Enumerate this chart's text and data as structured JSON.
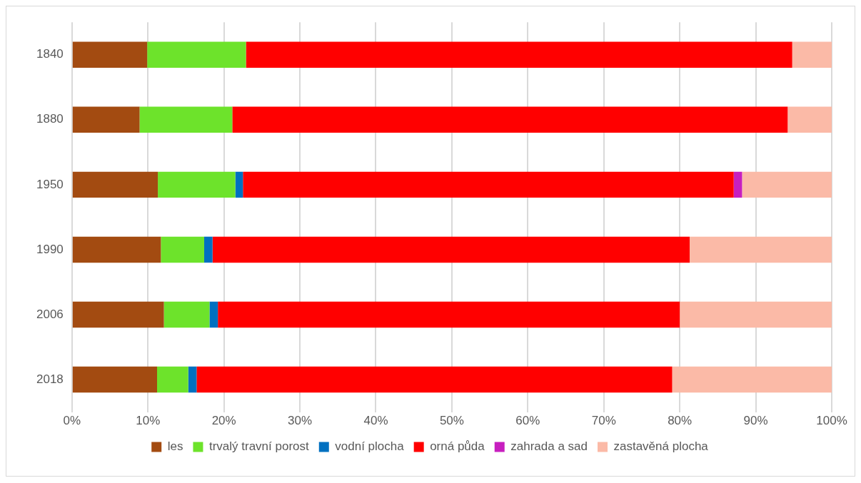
{
  "chart_data": {
    "type": "bar",
    "orientation": "horizontal",
    "stacked": true,
    "categories": [
      "1840",
      "1880",
      "1950",
      "1990",
      "2006",
      "2018"
    ],
    "series": [
      {
        "name": "les",
        "color": "#a34b11",
        "values": [
          9.9,
          8.9,
          11.3,
          11.7,
          12.1,
          11.2
        ]
      },
      {
        "name": "trvalý travní porost",
        "color": "#6de32b",
        "values": [
          13.0,
          12.2,
          10.2,
          5.7,
          6.0,
          4.1
        ]
      },
      {
        "name": "vodní plocha",
        "color": "#0070c0",
        "values": [
          null,
          null,
          1.0,
          1.1,
          1.1,
          1.1
        ]
      },
      {
        "name": "orná půda",
        "color": "#ff0000",
        "values": [
          71.9,
          73.1,
          64.6,
          62.8,
          60.8,
          62.6
        ]
      },
      {
        "name": "zahrada a sad",
        "color": "#c71fbf",
        "values": [
          null,
          null,
          1.1,
          null,
          null,
          null
        ]
      },
      {
        "name": "zastavěná plocha",
        "color": "#fbbaa7",
        "values": [
          5.2,
          5.8,
          11.8,
          18.7,
          20.0,
          21.0
        ]
      }
    ],
    "xlim": [
      0,
      100
    ],
    "xticks": [
      {
        "value": 0,
        "label": "0%"
      },
      {
        "value": 10,
        "label": "10%"
      },
      {
        "value": 20,
        "label": "20%"
      },
      {
        "value": 30,
        "label": "30%"
      },
      {
        "value": 40,
        "label": "40%"
      },
      {
        "value": 50,
        "label": "50%"
      },
      {
        "value": 60,
        "label": "60%"
      },
      {
        "value": 70,
        "label": "70%"
      },
      {
        "value": 80,
        "label": "80%"
      },
      {
        "value": 90,
        "label": "90%"
      },
      {
        "value": 100,
        "label": "100%"
      }
    ],
    "grid": "x",
    "legend": "bottom"
  }
}
